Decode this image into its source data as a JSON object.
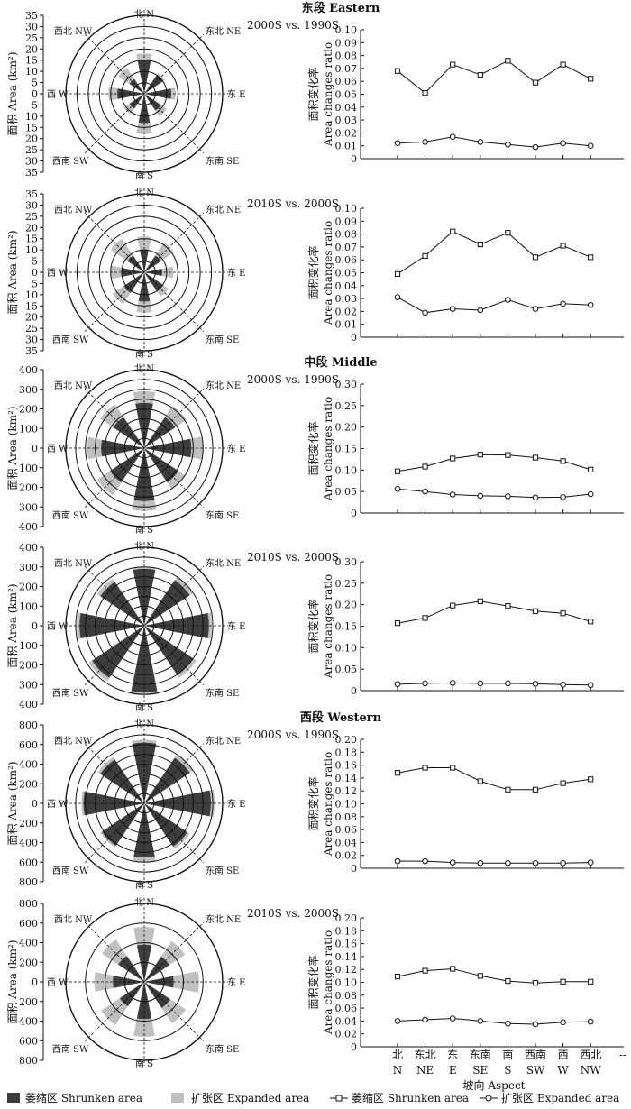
{
  "legend": {
    "shrunken_bar": "萎缩区 Shrunken area",
    "expanded_bar": "扩张区 Expanded area",
    "shrunken_line": "萎缩区 Shrunken area",
    "expanded_line": "扩张区 Expanded area",
    "extra": "--"
  },
  "colors": {
    "shrunken": "#3d3d3d",
    "expanded": "#c0c0c0"
  },
  "labels": {
    "rose_ylabel": "面积 Area (km²)",
    "line_ylabel_cn": "面积变化率",
    "line_ylabel_en": "Area changes ratio",
    "xlabel": "坡向 Aspect",
    "dirs": {
      "N": "北 N",
      "NE": "东北 NE",
      "E": "东 E",
      "SE": "东南 SE",
      "S": "南 S",
      "SW": "西南 SW",
      "W": "西 W",
      "NW": "西北 NW"
    }
  },
  "x_ticks": [
    {
      "cn": "北",
      "en": "N"
    },
    {
      "cn": "东北",
      "en": "NE"
    },
    {
      "cn": "东",
      "en": "E"
    },
    {
      "cn": "东南",
      "en": "SE"
    },
    {
      "cn": "南",
      "en": "S"
    },
    {
      "cn": "西南",
      "en": "SW"
    },
    {
      "cn": "西",
      "en": "W"
    },
    {
      "cn": "西北",
      "en": "NW"
    }
  ],
  "chart_data": [
    {
      "section": "东段 Eastern",
      "comparison": "2000S vs. 1990S",
      "rose": {
        "type": "polar-bar",
        "order": [
          "N",
          "NE",
          "E",
          "SE",
          "S",
          "SW",
          "W",
          "NW"
        ],
        "ticks": [
          35,
          30,
          25,
          20,
          15,
          10,
          5,
          0,
          5,
          10,
          15,
          20,
          25,
          30,
          35
        ],
        "max": 35,
        "ring_step": 5,
        "shrunken": [
          15,
          10,
          12,
          9,
          13,
          8,
          12,
          8
        ],
        "expanded": [
          18,
          11,
          14,
          12,
          18,
          11,
          16,
          14
        ]
      },
      "line": {
        "type": "line",
        "ylim": [
          0,
          0.1
        ],
        "ystep": 0.01,
        "yticks": [
          "0",
          "0.01",
          "0.02",
          "0.03",
          "0.04",
          "0.05",
          "0.06",
          "0.07",
          "0.08",
          "0.09",
          "0.10"
        ],
        "shrunken": [
          0.068,
          0.051,
          0.073,
          0.065,
          0.076,
          0.059,
          0.073,
          0.062
        ],
        "expanded": [
          0.012,
          0.013,
          0.017,
          0.013,
          0.011,
          0.009,
          0.012,
          0.01
        ]
      }
    },
    {
      "section": "",
      "comparison": "2010S vs. 2000S",
      "rose": {
        "type": "polar-bar",
        "order": [
          "N",
          "NE",
          "E",
          "SE",
          "S",
          "SW",
          "W",
          "NW"
        ],
        "ticks": [
          35,
          30,
          25,
          20,
          15,
          10,
          5,
          0,
          5,
          10,
          15,
          20,
          25,
          30,
          35
        ],
        "max": 35,
        "ring_step": 5,
        "shrunken": [
          10,
          9,
          8,
          10,
          13,
          11,
          10,
          9
        ],
        "expanded": [
          16,
          16,
          13,
          13,
          18,
          17,
          15,
          18
        ]
      },
      "line": {
        "type": "line",
        "ylim": [
          0,
          0.1
        ],
        "ystep": 0.01,
        "yticks": [
          "0",
          "0.01",
          "0.02",
          "0.03",
          "0.04",
          "0.05",
          "0.06",
          "0.07",
          "0.08",
          "0.09",
          "0.10"
        ],
        "shrunken": [
          0.049,
          0.063,
          0.082,
          0.072,
          0.081,
          0.062,
          0.071,
          0.062
        ],
        "expanded": [
          0.031,
          0.019,
          0.022,
          0.021,
          0.029,
          0.022,
          0.026,
          0.025
        ]
      }
    },
    {
      "section": "中段 Middle",
      "comparison": "2000S vs. 1990S",
      "rose": {
        "type": "polar-bar",
        "order": [
          "N",
          "NE",
          "E",
          "SE",
          "S",
          "SW",
          "W",
          "NW"
        ],
        "ticks": [
          400,
          300,
          200,
          100,
          0,
          100,
          200,
          300,
          400
        ],
        "max": 400,
        "ring_step": 50,
        "shrunken": [
          230,
          190,
          240,
          210,
          270,
          210,
          220,
          190
        ],
        "expanded": [
          290,
          260,
          300,
          250,
          320,
          290,
          290,
          270
        ]
      },
      "line": {
        "type": "line",
        "ylim": [
          0,
          0.3
        ],
        "ystep": 0.05,
        "yticks": [
          "0",
          "0.05",
          "0.10",
          "0.15",
          "0.20",
          "0.25",
          "0.30"
        ],
        "shrunken": [
          0.097,
          0.108,
          0.127,
          0.136,
          0.135,
          0.129,
          0.121,
          0.101
        ],
        "expanded": [
          0.056,
          0.05,
          0.043,
          0.04,
          0.039,
          0.036,
          0.037,
          0.044
        ]
      }
    },
    {
      "section": "",
      "comparison": "2010S vs. 2000S",
      "rose": {
        "type": "polar-bar",
        "order": [
          "N",
          "NE",
          "E",
          "SE",
          "S",
          "SW",
          "W",
          "NW"
        ],
        "ticks": [
          400,
          300,
          200,
          100,
          0,
          100,
          200,
          300,
          400
        ],
        "max": 400,
        "ring_step": 50,
        "shrunken": [
          290,
          280,
          330,
          300,
          340,
          320,
          330,
          270
        ],
        "expanded": [
          300,
          300,
          345,
          320,
          355,
          340,
          345,
          290
        ]
      },
      "line": {
        "type": "line",
        "ylim": [
          0,
          0.3
        ],
        "ystep": 0.05,
        "yticks": [
          "0",
          "0.05",
          "0.10",
          "0.15",
          "0.20",
          "0.25",
          "0.30"
        ],
        "shrunken": [
          0.157,
          0.169,
          0.198,
          0.208,
          0.197,
          0.185,
          0.18,
          0.161
        ],
        "expanded": [
          0.015,
          0.017,
          0.018,
          0.017,
          0.017,
          0.016,
          0.014,
          0.013
        ]
      }
    },
    {
      "section": "西段 Western",
      "comparison": "2000S vs. 1990S",
      "rose": {
        "type": "polar-bar",
        "order": [
          "N",
          "NE",
          "E",
          "SE",
          "S",
          "SW",
          "W",
          "NW"
        ],
        "ticks": [
          800,
          600,
          400,
          200,
          0,
          200,
          400,
          600,
          800
        ],
        "max": 800,
        "ring_step": 100,
        "shrunken": [
          620,
          560,
          680,
          530,
          550,
          520,
          620,
          540
        ],
        "expanded": [
          650,
          600,
          720,
          560,
          600,
          540,
          640,
          570
        ]
      },
      "line": {
        "type": "line",
        "ylim": [
          0,
          0.2
        ],
        "ystep": 0.02,
        "yticks": [
          "0",
          "0.02",
          "0.04",
          "0.06",
          "0.08",
          "0.10",
          "0.12",
          "0.14",
          "0.16",
          "0.18",
          "0.20"
        ],
        "shrunken": [
          0.148,
          0.156,
          0.156,
          0.135,
          0.122,
          0.122,
          0.132,
          0.138
        ],
        "expanded": [
          0.011,
          0.011,
          0.009,
          0.008,
          0.008,
          0.008,
          0.008,
          0.009
        ]
      }
    },
    {
      "section": "",
      "comparison": "2010S vs. 2000S",
      "rose": {
        "type": "polar-bar",
        "order": [
          "N",
          "NE",
          "E",
          "SE",
          "S",
          "SW",
          "W",
          "NW"
        ],
        "ticks": [
          800,
          600,
          400,
          200,
          0,
          200,
          400,
          600,
          800
        ],
        "max": 800,
        "ring_step": 200,
        "shrunken": [
          380,
          310,
          300,
          320,
          380,
          300,
          320,
          320
        ],
        "expanded": [
          560,
          500,
          560,
          510,
          560,
          530,
          510,
          520
        ]
      },
      "line": {
        "type": "line",
        "ylim": [
          0,
          0.2
        ],
        "ystep": 0.02,
        "yticks": [
          "0",
          "0.02",
          "0.04",
          "0.06",
          "0.08",
          "0.10",
          "0.12",
          "0.14",
          "0.16",
          "0.18",
          "0.20"
        ],
        "shrunken": [
          0.109,
          0.118,
          0.121,
          0.11,
          0.102,
          0.099,
          0.101,
          0.101
        ],
        "expanded": [
          0.04,
          0.042,
          0.044,
          0.04,
          0.036,
          0.035,
          0.038,
          0.039
        ]
      }
    }
  ]
}
